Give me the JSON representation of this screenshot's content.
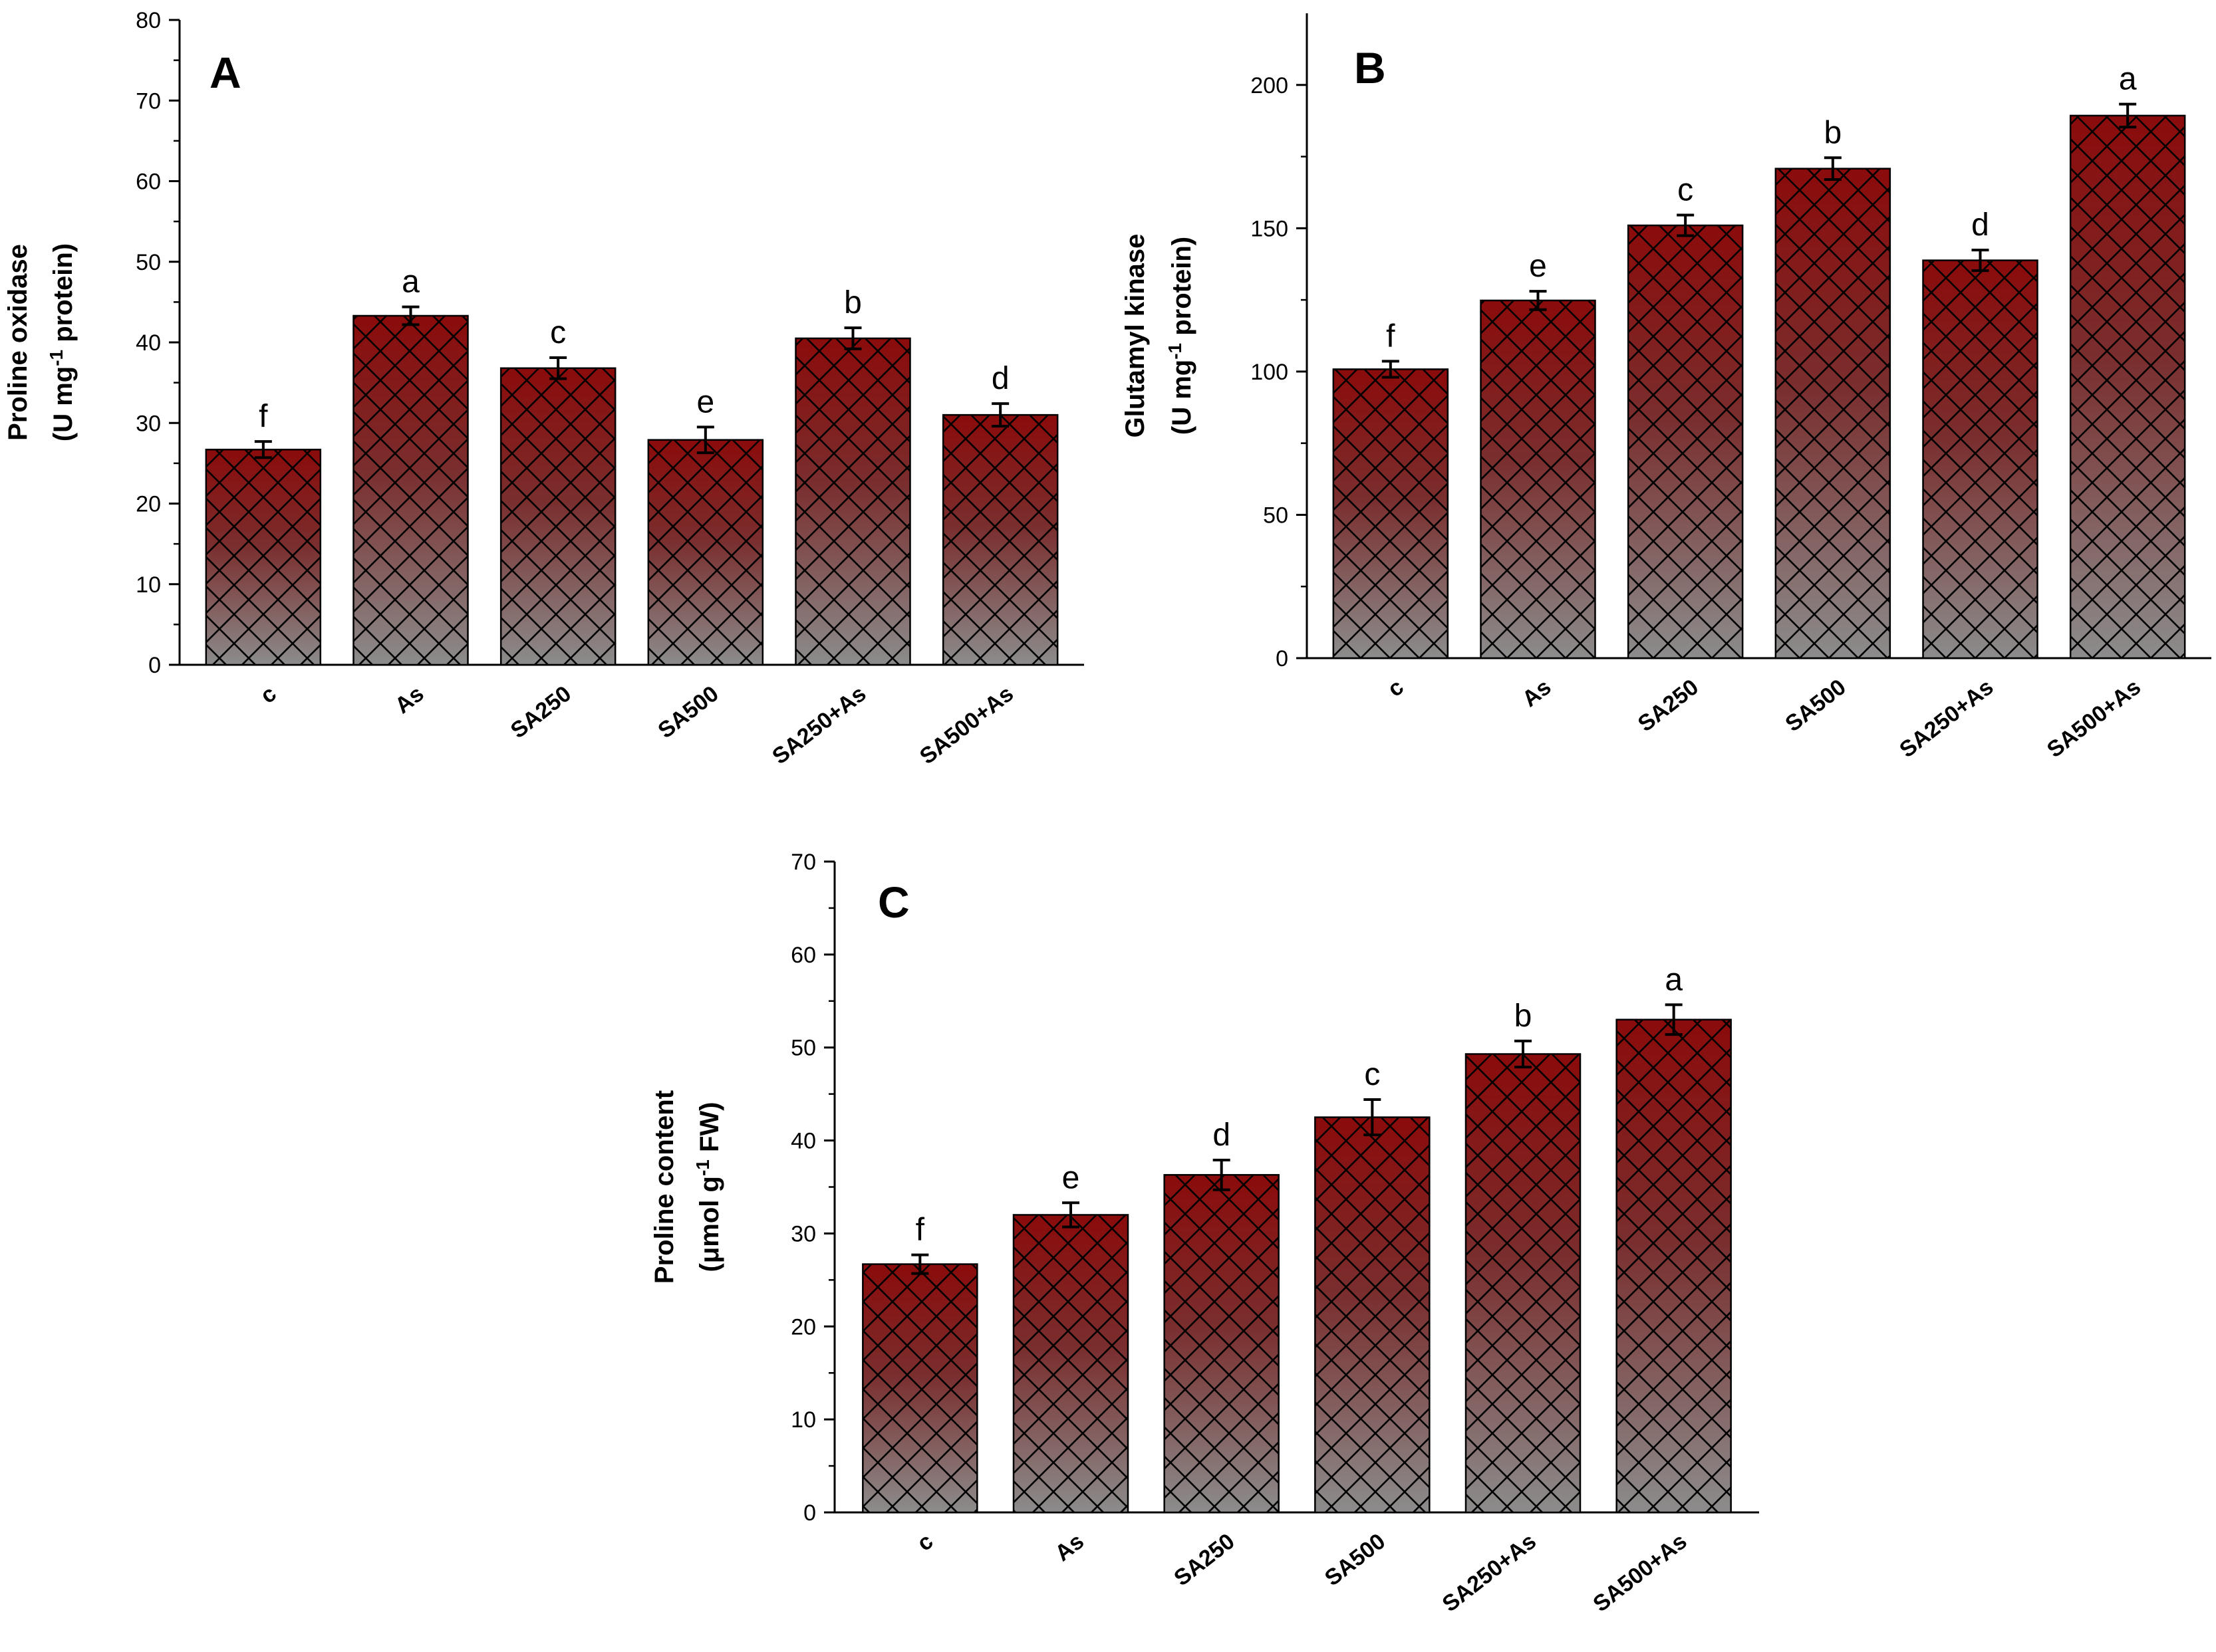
{
  "colors": {
    "bar_top": "#8b0b0b",
    "bar_bottom": "#8c8c8c",
    "hatch": "#000000",
    "axis": "#000000",
    "text": "#000000"
  },
  "chart_data": [
    {
      "panel_label": "A",
      "type": "bar",
      "ylabel_line1": "Proline oxidase",
      "ylabel_line2_pre": "(U mg",
      "ylabel_line2_sup": "-1",
      "ylabel_line2_post": " protein)",
      "ylim": [
        0,
        80
      ],
      "yticks": [
        "0",
        "10",
        "20",
        "30",
        "40",
        "50",
        "60",
        "70",
        "80"
      ],
      "categories": [
        "c",
        "As",
        "SA250",
        "SA500",
        "SA250+As",
        "SA500+As"
      ],
      "values": [
        26.7,
        43.3,
        36.8,
        27.9,
        40.5,
        31.0
      ],
      "errors": [
        1.0,
        1.1,
        1.3,
        1.6,
        1.3,
        1.4
      ],
      "significance_letters": [
        "f",
        "a",
        "c",
        "e",
        "b",
        "d"
      ],
      "grid": false,
      "legend": "none"
    },
    {
      "panel_label": "B",
      "type": "bar",
      "ylabel_line1": "Glutamyl kinase",
      "ylabel_line2_pre": "(U mg",
      "ylabel_line2_sup": "-1",
      "ylabel_line2_post": " protein)",
      "ylim": [
        0,
        225
      ],
      "yticks": [
        "0",
        "50",
        "100",
        "150",
        "200"
      ],
      "categories": [
        "c",
        "As",
        "SA250",
        "SA500",
        "SA250+As",
        "SA500+As"
      ],
      "values": [
        100.8,
        124.8,
        151.0,
        170.8,
        138.8,
        189.3
      ],
      "errors": [
        2.8,
        3.2,
        3.6,
        3.8,
        3.6,
        4.0
      ],
      "significance_letters": [
        "f",
        "e",
        "c",
        "b",
        "d",
        "a"
      ],
      "grid": false,
      "legend": "none"
    },
    {
      "panel_label": "C",
      "type": "bar",
      "ylabel_line1": "Proline content",
      "ylabel_line2_pre": "(μmol g",
      "ylabel_line2_sup": "-1",
      "ylabel_line2_post": " FW)",
      "ylim": [
        0,
        70
      ],
      "yticks": [
        "0",
        "10",
        "20",
        "30",
        "40",
        "50",
        "60",
        "70"
      ],
      "categories": [
        "c",
        "As",
        "SA250",
        "SA500",
        "SA250+As",
        "SA500+As"
      ],
      "values": [
        26.7,
        32.0,
        36.3,
        42.5,
        49.3,
        53.0
      ],
      "errors": [
        1.0,
        1.3,
        1.6,
        1.9,
        1.4,
        1.6
      ],
      "significance_letters": [
        "f",
        "e",
        "d",
        "c",
        "b",
        "a"
      ],
      "grid": false,
      "legend": "none"
    }
  ]
}
